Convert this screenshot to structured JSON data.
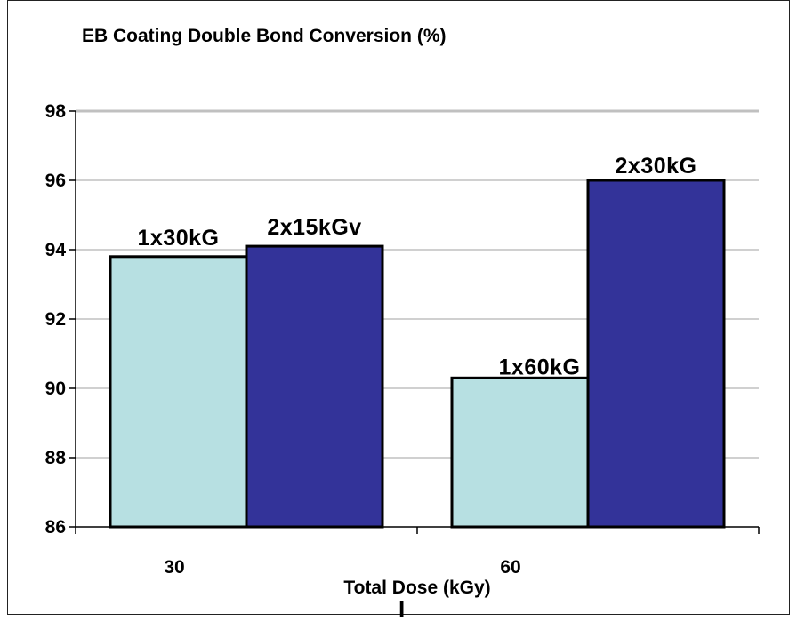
{
  "chart_data": {
    "type": "bar",
    "title": "EB Coating Double Bond Conversion (%)",
    "xlabel": "Total Dose (kGy)",
    "ylabel": "",
    "categories": [
      "30",
      "60"
    ],
    "series": [
      {
        "values": [
          93.8,
          90.3
        ],
        "color": "#b7e0e2",
        "labels": [
          "1x30kG",
          "1x60kG"
        ]
      },
      {
        "values": [
          94.1,
          96.0
        ],
        "color": "#333399",
        "labels": [
          "2x15kGv",
          "2x30kG"
        ]
      }
    ],
    "ylim": [
      86,
      98
    ],
    "yticks": [
      "86",
      "88",
      "90",
      "92",
      "94",
      "96",
      "98"
    ],
    "grid": true,
    "legend": "none"
  },
  "colors": {
    "grid": "#c0c0c0",
    "axis": "#000000",
    "bar_border": "#000000"
  },
  "cursor_glyph": "I"
}
